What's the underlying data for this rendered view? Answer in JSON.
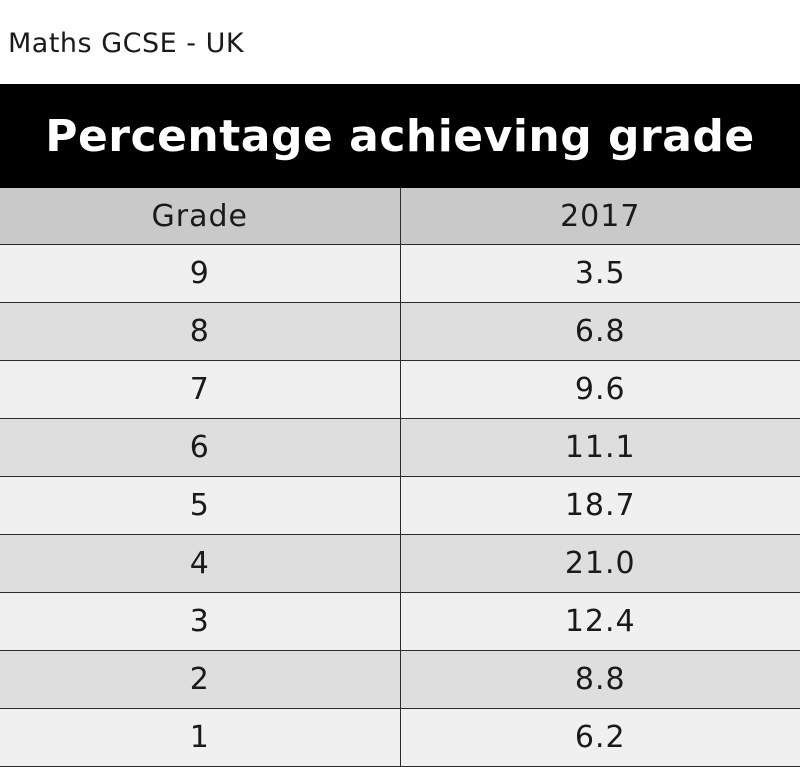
{
  "page": {
    "title": "Maths GCSE - UK"
  },
  "chart_data": {
    "type": "table",
    "title": "Percentage achieving grade",
    "columns": [
      "Grade",
      "2017"
    ],
    "rows": [
      {
        "grade": "9",
        "value": "3.5"
      },
      {
        "grade": "8",
        "value": "6.8"
      },
      {
        "grade": "7",
        "value": "9.6"
      },
      {
        "grade": "6",
        "value": "11.1"
      },
      {
        "grade": "5",
        "value": "18.7"
      },
      {
        "grade": "4",
        "value": "21.0"
      },
      {
        "grade": "3",
        "value": "12.4"
      },
      {
        "grade": "2",
        "value": "8.8"
      },
      {
        "grade": "1",
        "value": "6.2"
      }
    ]
  },
  "colors": {
    "header_background": "#000000",
    "header_text": "#ffffff",
    "column_header_background": "#c9c9c9",
    "row_light": "#f0f0f0",
    "row_dark": "#dedede"
  }
}
